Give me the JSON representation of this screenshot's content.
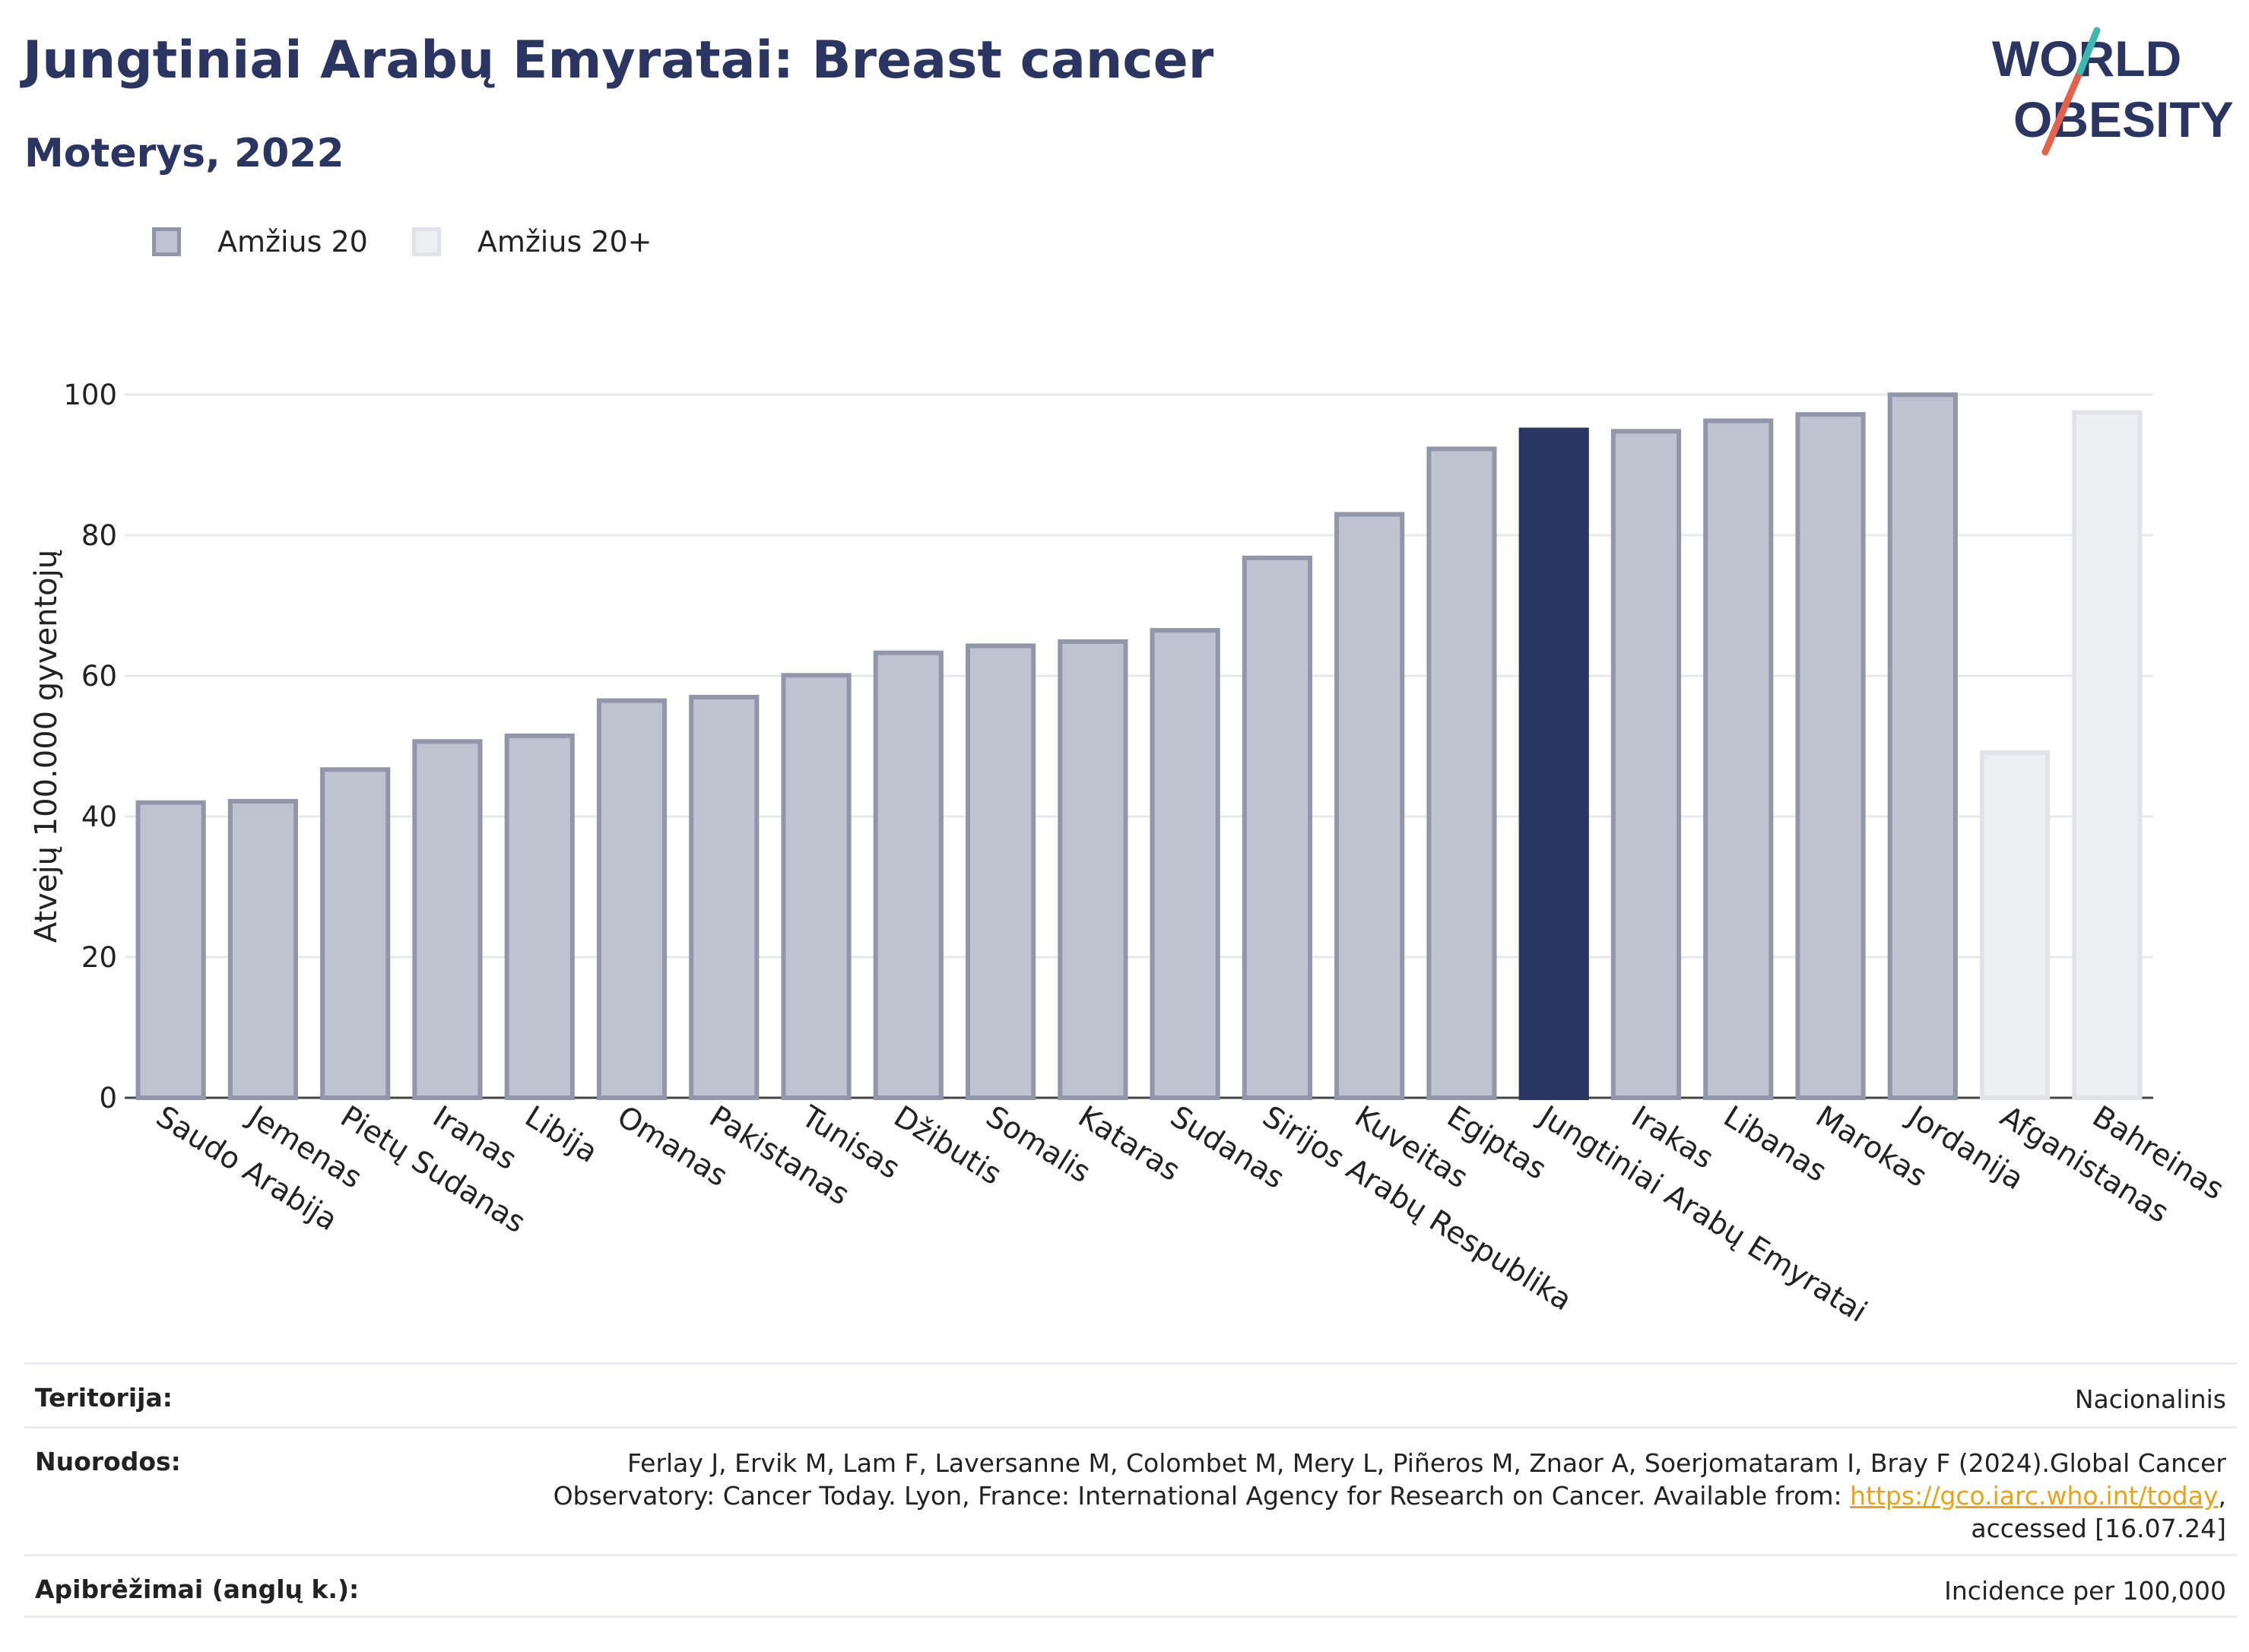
{
  "header": {
    "title": "Jungtiniai Arabų Emyratai: Breast cancer",
    "subtitle": "Moterys, 2022"
  },
  "logo": {
    "line1": "WORLD",
    "line2": "OBESITY"
  },
  "legend": [
    {
      "label": "Amžius 20"
    },
    {
      "label": "Amžius 20+"
    }
  ],
  "colors": {
    "age20_fill": "#bfc2cf",
    "age20_stroke": "#9196ab",
    "age20plus_fill": "#eeeff3",
    "age20plus_stroke": "#e2e3ea",
    "highlight": "#2b3562"
  },
  "chart_data": {
    "type": "bar",
    "ylabel": "Atvejų 100.000 gyventojų",
    "ylim": [
      0,
      100
    ],
    "yticks": [
      0,
      20,
      40,
      60,
      80,
      100
    ],
    "grid": true,
    "legend_position": "top-left",
    "highlight": "Jungtiniai Arabų Emyratai",
    "categories": [
      "Saudo Arabija",
      "Jemenas",
      "Pietų Sudanas",
      "Iranas",
      "Libija",
      "Omanas",
      "Pakistanas",
      "Tunisas",
      "Džibutis",
      "Somalis",
      "Kataras",
      "Sudanas",
      "Sirijos Arabų Respublika",
      "Kuveitas",
      "Egiptas",
      "Jungtiniai Arabų Emyratai",
      "Irakas",
      "Libanas",
      "Marokas",
      "Jordanija",
      "Afganistanas",
      "Bahreinas"
    ],
    "values": [
      42.3,
      42.5,
      47,
      51,
      51.8,
      56.8,
      57.3,
      60.4,
      63.6,
      64.6,
      65.2,
      66.8,
      77.1,
      83.3,
      92.6,
      95.3,
      95.1,
      96.6,
      97.5,
      100.3,
      49.4,
      97.8
    ],
    "series": [
      "Amžius 20",
      "Amžius 20",
      "Amžius 20",
      "Amžius 20",
      "Amžius 20",
      "Amžius 20",
      "Amžius 20",
      "Amžius 20",
      "Amžius 20",
      "Amžius 20",
      "Amžius 20",
      "Amžius 20",
      "Amžius 20",
      "Amžius 20",
      "Amžius 20",
      "Amžius 20",
      "Amžius 20",
      "Amžius 20",
      "Amžius 20",
      "Amžius 20",
      "Amžius 20+",
      "Amžius 20+"
    ]
  },
  "footer": {
    "territory_label": "Teritorija:",
    "territory_value": "Nacionalinis",
    "refs_label": "Nuorodos:",
    "refs_line1": "Ferlay J, Ervik M, Lam F, Laversanne M, Colombet M, Mery L, Piñeros M, Znaor A, Soerjomataram I, Bray F (2024).Global Cancer",
    "refs_line2_prefix": "Observatory: Cancer Today. Lyon, France: International Agency for Research on Cancer. Available from: ",
    "refs_link": "https://gco.iarc.who.int/today",
    "refs_line2_suffix": ",",
    "refs_line3": "accessed [16.07.24]",
    "definitions_label": "Apibrėžimai (anglų k.):",
    "definitions_value": "Incidence per 100,000"
  }
}
